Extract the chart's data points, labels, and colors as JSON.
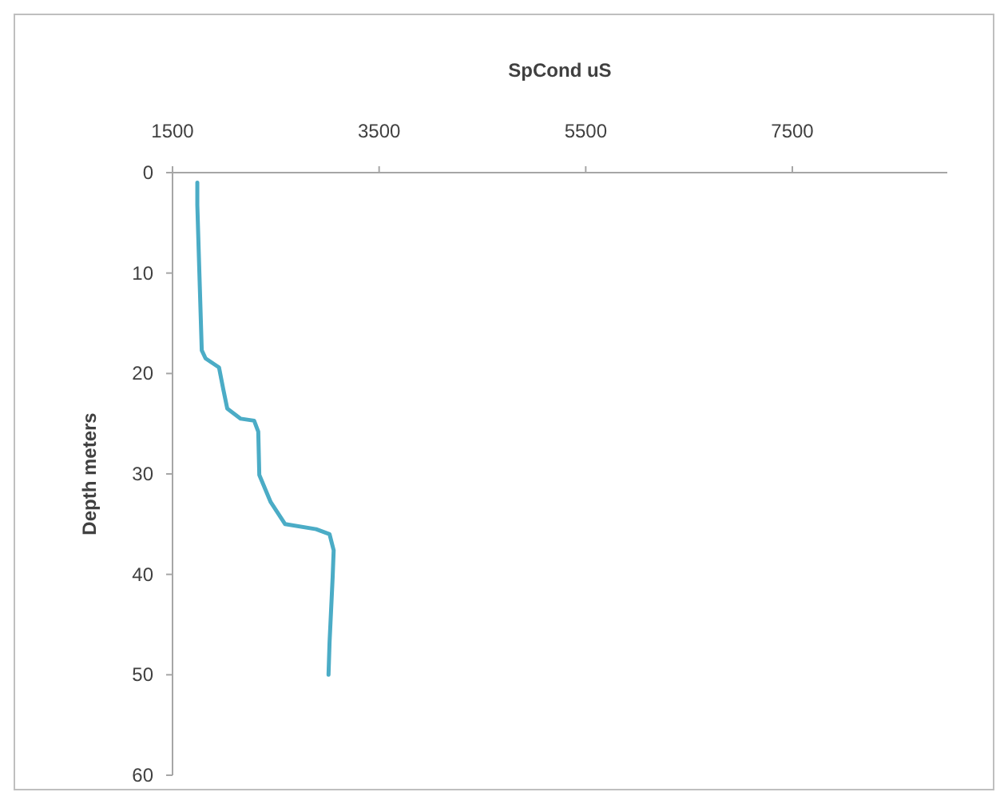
{
  "chart_data": {
    "type": "line",
    "xlabel": "SpCond uS",
    "ylabel": "Depth meters",
    "xlim": [
      1500,
      9000
    ],
    "xticks": [
      1500,
      3500,
      5500,
      7500
    ],
    "ylim": [
      60,
      0
    ],
    "yticks": [
      0,
      10,
      20,
      30,
      40,
      50,
      60
    ],
    "grid": false,
    "marker": "none",
    "line_style": "solid",
    "series": [
      {
        "color": "#4bacc6",
        "x": [
          1740,
          1740,
          1760,
          1783,
          1820,
          1950,
          1990,
          2030,
          2160,
          2290,
          2330,
          2340,
          2450,
          2590,
          2890,
          3020,
          3060,
          3050,
          3020,
          3010
        ],
        "values": [
          1,
          3.2,
          10,
          17.7,
          18.5,
          19.4,
          21.5,
          23.5,
          24.5,
          24.7,
          25.8,
          30.1,
          32.8,
          35,
          35.5,
          36,
          37.6,
          40.3,
          46.8,
          50
        ]
      }
    ]
  }
}
